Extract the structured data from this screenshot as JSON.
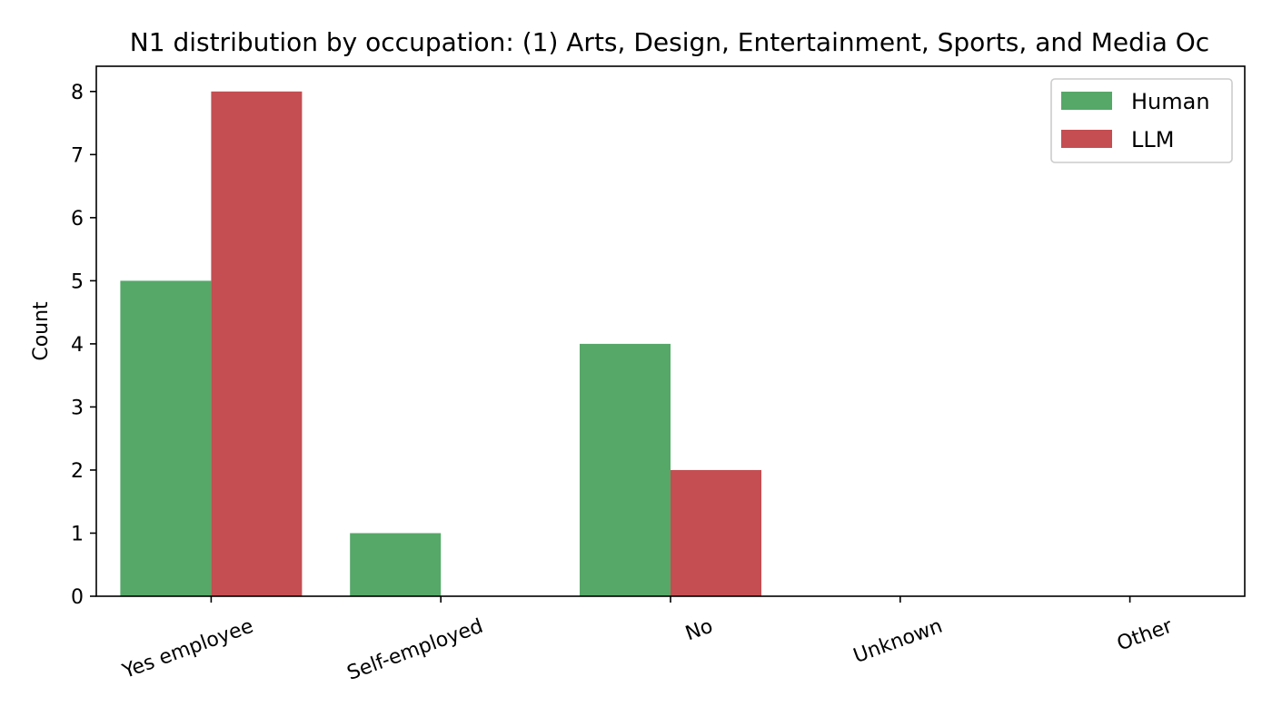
{
  "chart_data": {
    "type": "bar",
    "title": "N1 distribution by occupation: (1) Arts, Design, Entertainment, Sports, and Media Oc",
    "xlabel": "",
    "ylabel": "Count",
    "categories": [
      "Yes employee",
      "Self-employed",
      "No",
      "Unknown",
      "Other"
    ],
    "series": [
      {
        "name": "Human",
        "color": "#55a868",
        "values": [
          5,
          1,
          4,
          0,
          0
        ]
      },
      {
        "name": "LLM",
        "color": "#c44e52",
        "values": [
          8,
          0,
          2,
          0,
          0
        ]
      }
    ],
    "ylim": [
      0,
      8.4
    ],
    "yticks": [
      0,
      1,
      2,
      3,
      4,
      5,
      6,
      7,
      8
    ],
    "grid": false,
    "legend_position": "top-right"
  }
}
